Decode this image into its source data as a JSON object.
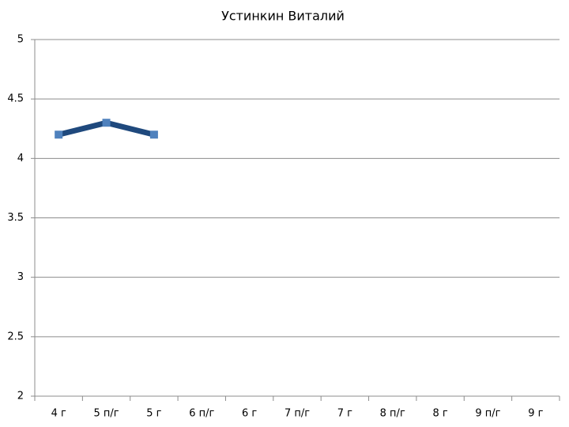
{
  "chart_data": {
    "type": "line",
    "title": "Устинкин Виталий",
    "categories": [
      "4 г",
      "5 п/г",
      "5 г",
      "6 п/г",
      "6 г",
      "7 п/г",
      "7 г",
      "8 п/г",
      "8 г",
      "9 п/г",
      "9 г"
    ],
    "values": [
      4.2,
      4.3,
      4.2,
      null,
      null,
      null,
      null,
      null,
      null,
      null,
      null
    ],
    "color": "#1f497d",
    "marker_color": "#4f81bd",
    "ylim": [
      2,
      5
    ],
    "yticks": [
      2,
      2.5,
      3,
      3.5,
      4,
      4.5,
      5
    ],
    "grid": true
  }
}
